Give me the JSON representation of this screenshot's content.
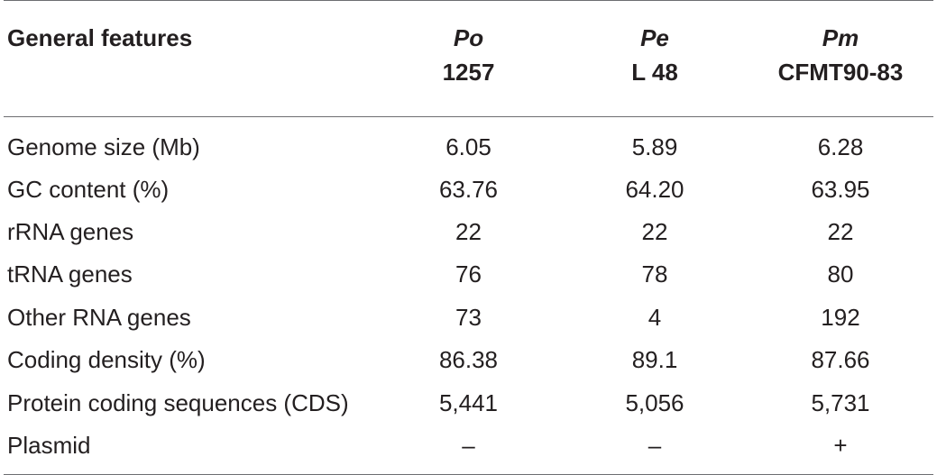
{
  "table": {
    "headers": [
      {
        "species": "",
        "strain": "General features"
      },
      {
        "species": "Po",
        "strain": "1257"
      },
      {
        "species": "Pe",
        "strain": "L 48"
      },
      {
        "species": "Pm",
        "strain": "CFMT90-83"
      }
    ],
    "rows": [
      {
        "label": "Genome size (Mb)",
        "values": [
          "6.05",
          "5.89",
          "6.28"
        ]
      },
      {
        "label": "GC content (%)",
        "values": [
          "63.76",
          "64.20",
          "63.95"
        ]
      },
      {
        "label": "rRNA genes",
        "values": [
          "22",
          "22",
          "22"
        ]
      },
      {
        "label": "tRNA genes",
        "values": [
          "76",
          "78",
          "80"
        ]
      },
      {
        "label": "Other RNA genes",
        "values": [
          "73",
          "4",
          "192"
        ]
      },
      {
        "label": "Coding density (%)",
        "values": [
          "86.38",
          "89.1",
          "87.66"
        ]
      },
      {
        "label": "Protein coding sequences (CDS)",
        "values": [
          "5,441",
          "5,056",
          "5,731"
        ]
      },
      {
        "label": "Plasmid",
        "values": [
          "–",
          "–",
          "+"
        ]
      }
    ]
  }
}
